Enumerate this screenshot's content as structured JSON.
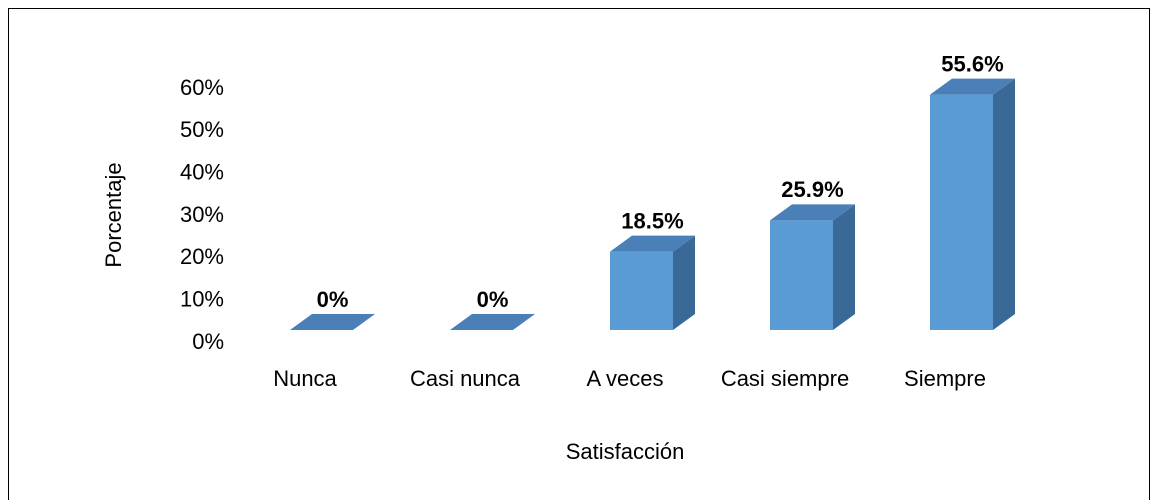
{
  "chart_data": {
    "type": "bar3d",
    "categories": [
      "Nunca",
      "Casi nunca",
      "A veces",
      "Casi siempre",
      "Siempre"
    ],
    "values": [
      0,
      0,
      18.5,
      25.9,
      55.6
    ],
    "value_labels": [
      "0%",
      "0%",
      "18.5%",
      "25.9%",
      "55.6%"
    ],
    "color": "#5b9bd5",
    "ylim": [
      0,
      60
    ],
    "yticks": [
      {
        "value": 0,
        "label": "0%"
      },
      {
        "value": 10,
        "label": "10%"
      },
      {
        "value": 20,
        "label": "20%"
      },
      {
        "value": 30,
        "label": "30%"
      },
      {
        "value": 40,
        "label": "40%"
      },
      {
        "value": 50,
        "label": "50%"
      },
      {
        "value": 60,
        "label": "60%"
      }
    ],
    "y_label": "Porcentaje",
    "x_label": "Satisfacción"
  }
}
